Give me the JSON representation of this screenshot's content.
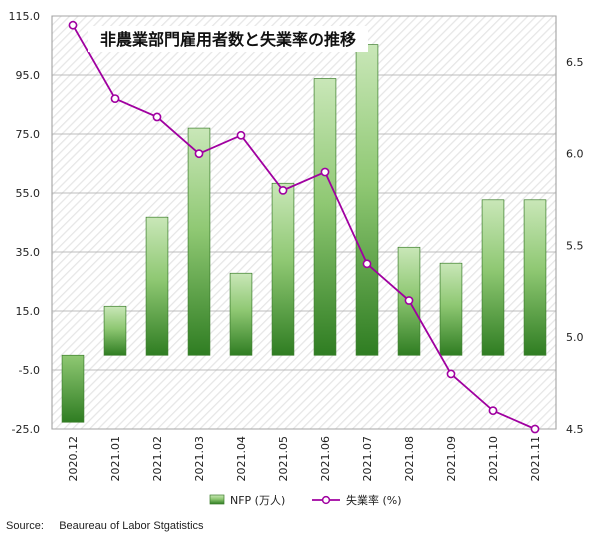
{
  "chart_data": {
    "type": "bar+line",
    "title": "非農業部門雇用者数と失業率の推移",
    "categories": [
      "2020.12",
      "2021.01",
      "2021.02",
      "2021.03",
      "2021.04",
      "2021.05",
      "2021.06",
      "2021.07",
      "2021.08",
      "2021.09",
      "2021.10",
      "2021.11"
    ],
    "series": [
      {
        "name": "NFP (万人)",
        "type": "bar",
        "axis": "left",
        "values": [
          -22.7,
          16.6,
          46.8,
          77.0,
          27.8,
          58.3,
          93.8,
          105.3,
          36.6,
          31.2,
          52.7,
          52.7
        ],
        "color": "#3f8f2f"
      },
      {
        "name": "失業率 (%)",
        "type": "line",
        "axis": "right",
        "values": [
          6.7,
          6.3,
          6.2,
          6.0,
          6.1,
          5.8,
          5.9,
          5.4,
          5.2,
          4.8,
          4.6,
          4.5
        ],
        "color": "#a000a0"
      }
    ],
    "y_left": {
      "min": -25.0,
      "max": 115.0,
      "ticks": [
        "115.0",
        "95.0",
        "75.0",
        "55.0",
        "35.0",
        "15.0",
        "-5.0",
        "-25.0"
      ]
    },
    "y_right": {
      "min": 4.5,
      "max": 6.75,
      "ticks": [
        "6.5",
        "6.0",
        "5.5",
        "5.0",
        "4.5"
      ]
    },
    "grid": true,
    "legend_position": "bottom"
  },
  "source_label": "Source:",
  "source_text": "Beaureau of Labor Stgatistics"
}
